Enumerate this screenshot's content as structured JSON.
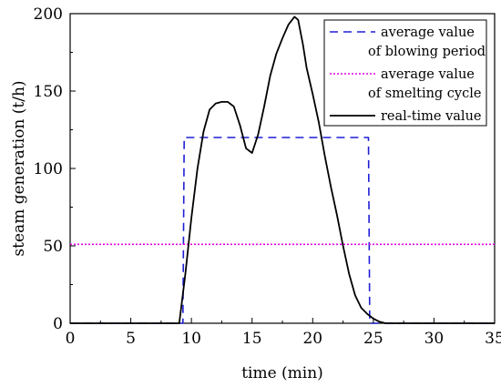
{
  "chart_data": {
    "type": "line",
    "xlabel": "time (min)",
    "ylabel": "steam generation (t/h)",
    "xlim": [
      0,
      35
    ],
    "ylim": [
      0,
      200
    ],
    "xticks": [
      "0",
      "5",
      "10",
      "15",
      "20",
      "25",
      "30",
      "35"
    ],
    "yticks": [
      "0",
      "50",
      "100",
      "150",
      "200"
    ],
    "grid": false,
    "legend_position": "top-right",
    "series": [
      {
        "name_lines": [
          "average value",
          "of blowing period"
        ],
        "color": "#1f1fd6",
        "style": "dashed",
        "x": [
          0,
          9.3,
          9.4,
          24.6,
          24.7,
          35
        ],
        "y": [
          0,
          0,
          120,
          120,
          0,
          0
        ]
      },
      {
        "name_lines": [
          "average value",
          "of smelting cycle"
        ],
        "color": "#e000e0",
        "style": "dotted",
        "x": [
          0,
          35
        ],
        "y": [
          51,
          51
        ]
      },
      {
        "name_lines": [
          "real-time value"
        ],
        "color": "#000000",
        "style": "solid",
        "x": [
          0,
          9.0,
          9.5,
          10.0,
          10.5,
          11.0,
          11.5,
          12.0,
          12.5,
          13.0,
          13.5,
          14.0,
          14.5,
          15.0,
          15.5,
          16.0,
          16.5,
          17.0,
          17.5,
          18.0,
          18.5,
          18.8,
          19.2,
          19.5,
          20.0,
          20.5,
          21.0,
          21.5,
          22.0,
          22.5,
          23.0,
          23.5,
          24.0,
          24.5,
          25.0,
          25.5,
          26.0,
          35
        ],
        "y": [
          0,
          0,
          32,
          68,
          100,
          124,
          138,
          142,
          143,
          143,
          140,
          128,
          113,
          110,
          122,
          140,
          160,
          174,
          184,
          193,
          198,
          196,
          180,
          165,
          148,
          130,
          108,
          88,
          70,
          50,
          32,
          18,
          10,
          6,
          3,
          1,
          0,
          0
        ]
      }
    ]
  }
}
